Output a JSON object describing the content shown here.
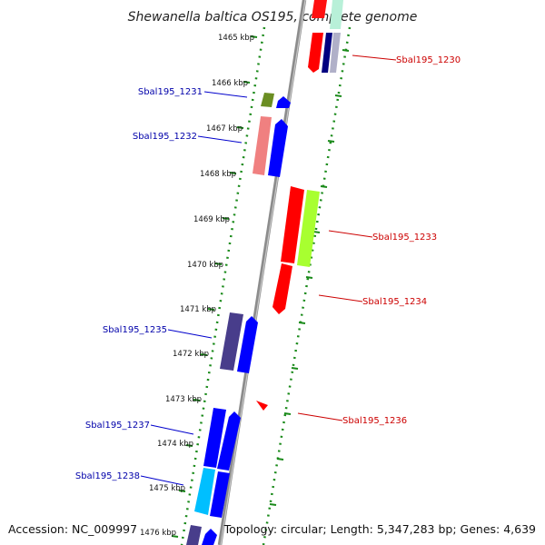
{
  "title": "Shewanella baltica OS195, complete genome",
  "footer": {
    "accession": "Accession: NC_009997",
    "info": "Topology: circular; Length: 5,347,283 bp; Genes: 4,639"
  },
  "ticks": [
    "1465 kbp",
    "1466 kbp",
    "1467 kbp",
    "1468 kbp",
    "1469 kbp",
    "1470 kbp",
    "1471 kbp",
    "1472 kbp",
    "1473 kbp",
    "1474 kbp",
    "1475 kbp",
    "1476 kbp"
  ],
  "genes": [
    {
      "id": "Sbal195_1230",
      "strand": "forward",
      "color": "#cc0000"
    },
    {
      "id": "Sbal195_1231",
      "strand": "reverse",
      "color": "#0000aa"
    },
    {
      "id": "Sbal195_1232",
      "strand": "reverse",
      "color": "#0000aa"
    },
    {
      "id": "Sbal195_1233",
      "strand": "forward",
      "color": "#cc0000"
    },
    {
      "id": "Sbal195_1234",
      "strand": "forward",
      "color": "#cc0000"
    },
    {
      "id": "Sbal195_1235",
      "strand": "reverse",
      "color": "#0000aa"
    },
    {
      "id": "Sbal195_1236",
      "strand": "forward",
      "color": "#cc0000"
    },
    {
      "id": "Sbal195_1237",
      "strand": "reverse",
      "color": "#0000aa"
    },
    {
      "id": "Sbal195_1238",
      "strand": "reverse",
      "color": "#0000aa"
    }
  ],
  "colors": {
    "backbone": "#8c8c8c",
    "dotted_boundary": "#1a8a1a",
    "forward_gene": "#ff0000",
    "reverse_gene": "#0000ff"
  }
}
